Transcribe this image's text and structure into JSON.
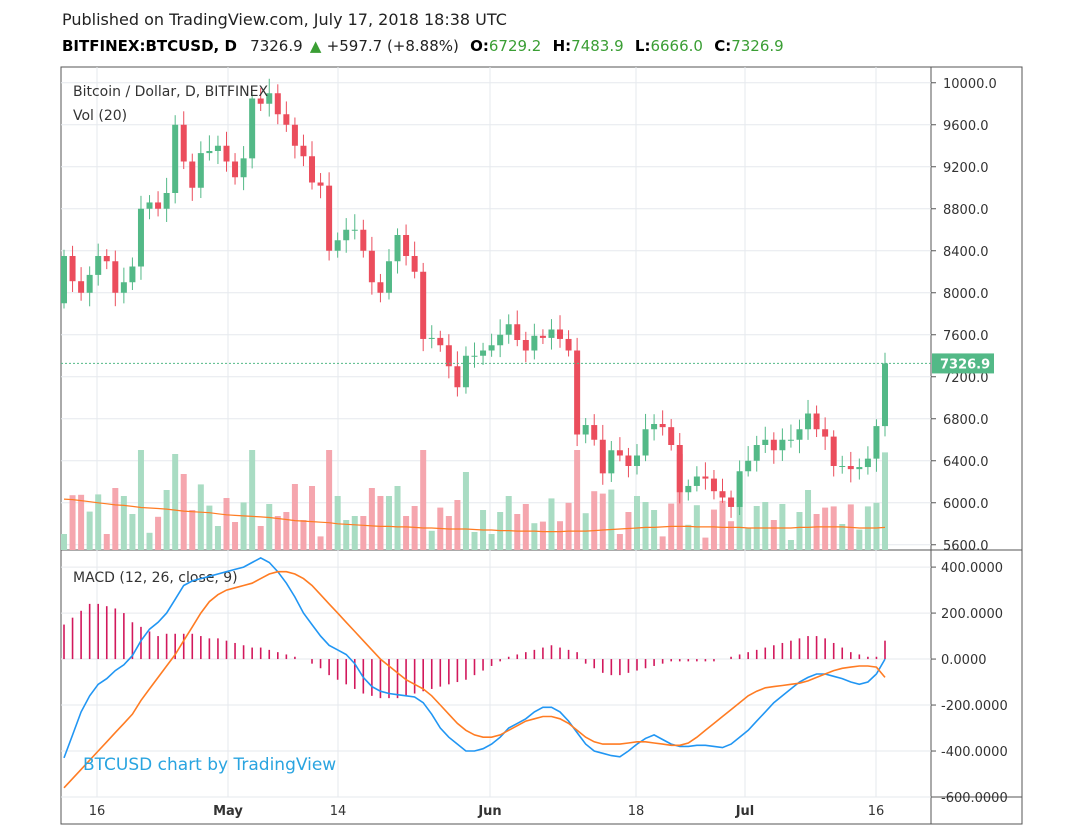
{
  "header": {
    "published": "Published on TradingView.com, July 17, 2018 18:38 UTC",
    "symbol": "BITFINEX:BTCUSD, D",
    "last": "7326.9",
    "change": "+597.7 (+8.88%)",
    "o_label": "O:",
    "o_value": "6729.2",
    "h_label": "H:",
    "h_value": "7483.9",
    "l_label": "L:",
    "l_value": "6666.0",
    "c_label": "C:",
    "c_value": "7326.9"
  },
  "price_pane": {
    "title": "Bitcoin / Dollar, D, BITFINEX",
    "vol_label": "Vol (20)",
    "last_price_tag": "7326.9"
  },
  "macd_pane": {
    "title": "MACD (12, 26, close, 9)"
  },
  "watermark": "BTCUSD chart by TradingView",
  "colors": {
    "up": "#53b987",
    "down": "#eb4d5c",
    "vol_up": "#a9dcc3",
    "vol_down": "#f5a6ae",
    "macd": "#2196f3",
    "signal": "#ff7c23",
    "hist": "#d2185c",
    "last_tag": "#53b987"
  },
  "chart_data": [
    {
      "type": "candlestick",
      "name": "BTCUSD daily",
      "x_ticks": [
        "16",
        "May",
        "14",
        "Jun",
        "18",
        "Jul",
        "16"
      ],
      "y_ticks": [
        "10000.0",
        "9600.0",
        "9200.0",
        "8800.0",
        "8400.0",
        "8000.0",
        "7600.0",
        "7200.0",
        "6800.0",
        "6400.0",
        "6000.0",
        "5600.0"
      ],
      "ylim": [
        5550,
        10150
      ],
      "close": [
        8350,
        8110,
        8000,
        8170,
        8350,
        8300,
        8000,
        8100,
        8250,
        8800,
        8860,
        8800,
        8950,
        9600,
        9250,
        9000,
        9330,
        9350,
        9400,
        9250,
        9100,
        9280,
        9850,
        9800,
        9900,
        9700,
        9600,
        9400,
        9300,
        9050,
        9020,
        8400,
        8500,
        8600,
        8600,
        8400,
        8100,
        8000,
        8300,
        8550,
        8350,
        8200,
        7560,
        7570,
        7500,
        7300,
        7100,
        7400,
        7400,
        7450,
        7500,
        7600,
        7700,
        7550,
        7450,
        7590,
        7570,
        7650,
        7560,
        7450,
        6650,
        6740,
        6600,
        6280,
        6500,
        6450,
        6350,
        6450,
        6700,
        6750,
        6720,
        6550,
        6100,
        6160,
        6250,
        6230,
        6110,
        6050,
        5960,
        6300,
        6400,
        6550,
        6600,
        6500,
        6600,
        6600,
        6700,
        6850,
        6700,
        6630,
        6350,
        6350,
        6320,
        6340,
        6420,
        6730,
        7326.9
      ],
      "volume_ma": [
        6035,
        6030,
        6020,
        6010,
        6000,
        5990,
        5980,
        5975,
        5965,
        5955,
        5950,
        5945,
        5940,
        5930,
        5920,
        5915,
        5910,
        5905,
        5895,
        5885,
        5880,
        5875,
        5870,
        5865,
        5860,
        5850,
        5840,
        5830,
        5825,
        5820,
        5815,
        5810,
        5800,
        5795,
        5790,
        5785,
        5780,
        5775,
        5775,
        5770,
        5770,
        5765,
        5760,
        5760,
        5755,
        5750,
        5750,
        5750,
        5745,
        5740,
        5740,
        5735,
        5735,
        5730,
        5730,
        5730,
        5725,
        5725,
        5725,
        5730,
        5730,
        5730,
        5735,
        5740,
        5745,
        5750,
        5755,
        5760,
        5765,
        5765,
        5770,
        5775,
        5775,
        5775,
        5770,
        5770,
        5770,
        5765,
        5765,
        5765,
        5760,
        5760,
        5760,
        5760,
        5760,
        5760,
        5765,
        5765,
        5770,
        5770,
        5770,
        5770,
        5765,
        5760,
        5760,
        5760,
        5765
      ]
    },
    {
      "type": "line",
      "name": "MACD (12, 26, close, 9)",
      "y_ticks": [
        "400.0000",
        "200.0000",
        "0.0000",
        "-200.0000",
        "-400.0000",
        "-600.0000"
      ],
      "ylim": [
        -600,
        470
      ],
      "series": [
        {
          "name": "MACD",
          "values": [
            -430,
            -330,
            -230,
            -160,
            -110,
            -85,
            -50,
            -25,
            15,
            80,
            130,
            160,
            200,
            260,
            320,
            340,
            350,
            360,
            370,
            380,
            390,
            400,
            420,
            440,
            420,
            380,
            330,
            270,
            200,
            150,
            100,
            60,
            40,
            20,
            -20,
            -80,
            -120,
            -140,
            -150,
            -155,
            -160,
            -165,
            -190,
            -240,
            -300,
            -340,
            -370,
            -400,
            -400,
            -390,
            -370,
            -340,
            -300,
            -280,
            -260,
            -230,
            -210,
            -210,
            -230,
            -270,
            -320,
            -370,
            -400,
            -410,
            -420,
            -425,
            -400,
            -370,
            -345,
            -330,
            -350,
            -370,
            -380,
            -380,
            -375,
            -375,
            -380,
            -385,
            -370,
            -340,
            -310,
            -270,
            -230,
            -190,
            -160,
            -130,
            -100,
            -80,
            -65,
            -65,
            -75,
            -85,
            -100,
            -110,
            -100,
            -65,
            0
          ]
        },
        {
          "name": "Signal",
          "values": [
            -560,
            -520,
            -480,
            -440,
            -400,
            -360,
            -320,
            -280,
            -240,
            -180,
            -130,
            -80,
            -30,
            20,
            80,
            140,
            200,
            250,
            280,
            300,
            310,
            320,
            330,
            350,
            370,
            380,
            380,
            370,
            350,
            320,
            280,
            240,
            200,
            160,
            120,
            80,
            40,
            0,
            -30,
            -60,
            -90,
            -110,
            -130,
            -160,
            -200,
            -240,
            -280,
            -310,
            -330,
            -340,
            -340,
            -330,
            -310,
            -290,
            -270,
            -260,
            -250,
            -250,
            -260,
            -280,
            -310,
            -340,
            -360,
            -370,
            -370,
            -370,
            -365,
            -360,
            -360,
            -365,
            -370,
            -375,
            -375,
            -365,
            -340,
            -310,
            -280,
            -250,
            -220,
            -190,
            -160,
            -140,
            -125,
            -120,
            -115,
            -110,
            -105,
            -95,
            -80,
            -65,
            -50,
            -40,
            -35,
            -30,
            -30,
            -35,
            -80
          ]
        },
        {
          "name": "Histogram",
          "values": [
            150,
            180,
            210,
            240,
            240,
            230,
            220,
            200,
            160,
            140,
            120,
            100,
            110,
            110,
            110,
            110,
            100,
            90,
            90,
            80,
            70,
            60,
            50,
            50,
            40,
            30,
            20,
            10,
            0,
            -20,
            -40,
            -70,
            -90,
            -110,
            -130,
            -150,
            -160,
            -170,
            -170,
            -170,
            -160,
            -150,
            -140,
            -130,
            -120,
            -110,
            -100,
            -90,
            -70,
            -50,
            -30,
            -10,
            10,
            20,
            30,
            40,
            50,
            60,
            50,
            40,
            30,
            -20,
            -40,
            -60,
            -70,
            -70,
            -60,
            -50,
            -40,
            -30,
            -20,
            -10,
            -10,
            -10,
            -10,
            -10,
            -10,
            0,
            10,
            20,
            30,
            40,
            50,
            60,
            70,
            80,
            90,
            100,
            100,
            90,
            70,
            50,
            30,
            20,
            10,
            10,
            80
          ]
        }
      ]
    }
  ]
}
